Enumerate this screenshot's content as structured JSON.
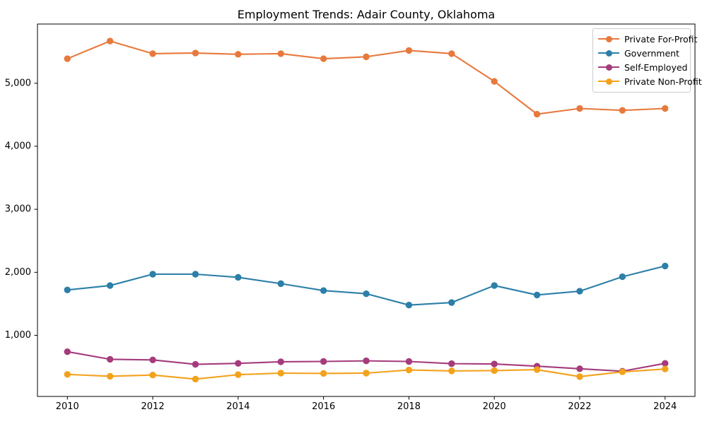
{
  "title": "Employment Trends: Adair County, Oklahoma",
  "chart_data": {
    "type": "line",
    "title": "Employment Trends: Adair County, Oklahoma",
    "xlabel": "",
    "ylabel": "",
    "x": [
      2010,
      2011,
      2012,
      2013,
      2014,
      2015,
      2016,
      2017,
      2018,
      2019,
      2020,
      2021,
      2022,
      2023,
      2024
    ],
    "series": [
      {
        "name": "Private For-Profit",
        "color": "#e8793d",
        "values": [
          5390,
          5670,
          5470,
          5480,
          5460,
          5470,
          5390,
          5420,
          5520,
          5470,
          5030,
          4510,
          4600,
          4570,
          4600
        ]
      },
      {
        "name": "Government",
        "color": "#2c7fa8",
        "values": [
          1720,
          1790,
          1970,
          1970,
          1920,
          1820,
          1710,
          1660,
          1480,
          1520,
          1790,
          1640,
          1700,
          1930,
          2100
        ]
      },
      {
        "name": "Self-Employed",
        "color": "#a53b7c",
        "values": [
          740,
          620,
          610,
          540,
          555,
          580,
          585,
          595,
          585,
          550,
          545,
          510,
          470,
          430,
          555
        ]
      },
      {
        "name": "Private Non-Profit",
        "color": "#f3a21c",
        "values": [
          380,
          350,
          370,
          305,
          375,
          400,
          395,
          400,
          450,
          435,
          440,
          455,
          345,
          420,
          465
        ]
      }
    ],
    "xticks": [
      2010,
      2012,
      2014,
      2016,
      2018,
      2020,
      2022,
      2024
    ],
    "xtick_labels": [
      "2010",
      "2012",
      "2014",
      "2016",
      "2018",
      "2020",
      "2022",
      "2024"
    ],
    "yticks": [
      1000,
      2000,
      3000,
      4000,
      5000
    ],
    "ytick_labels": [
      "1,000",
      "2,000",
      "3,000",
      "4,000",
      "5,000"
    ],
    "xlim": [
      2009.3,
      2024.7
    ],
    "ylim": [
      30,
      5940
    ],
    "grid": false,
    "legend_position": "upper right",
    "axis_color": "#000000",
    "background_color": "#ffffff"
  }
}
